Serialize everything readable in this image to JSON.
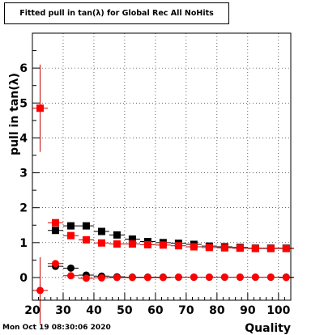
{
  "title": "Fitted pull in tan(λ) for Global Rec All NoHits",
  "timestamp": "Mon Oct 19 08:30:06 2020",
  "chart_data": {
    "type": "scatter",
    "title": "Fitted pull in tan(λ) for Global Rec All NoHits",
    "xlabel": "Quality",
    "ylabel": "pull in tan(λ)",
    "xlim": [
      20,
      104
    ],
    "ylim": [
      -0.65,
      7.0
    ],
    "x_ticks": [
      20,
      30,
      40,
      50,
      60,
      70,
      80,
      90,
      100
    ],
    "y_ticks": [
      0,
      1,
      2,
      3,
      4,
      5,
      6
    ],
    "grid": true,
    "colors": {
      "black": "#000000",
      "red": "#ff0000",
      "red_error": "#cc0000"
    },
    "series": [
      {
        "marker": "square",
        "color": "#000000",
        "points": [
          {
            "x": 27.5,
            "y": 1.35
          },
          {
            "x": 32.5,
            "y": 1.48
          },
          {
            "x": 37.5,
            "y": 1.48
          },
          {
            "x": 42.5,
            "y": 1.32
          },
          {
            "x": 47.5,
            "y": 1.22
          },
          {
            "x": 52.5,
            "y": 1.1
          },
          {
            "x": 57.5,
            "y": 1.03
          },
          {
            "x": 62.5,
            "y": 1.0
          },
          {
            "x": 67.5,
            "y": 0.98
          },
          {
            "x": 72.5,
            "y": 0.95
          },
          {
            "x": 77.5,
            "y": 0.9
          },
          {
            "x": 82.5,
            "y": 0.88
          },
          {
            "x": 87.5,
            "y": 0.86
          },
          {
            "x": 92.5,
            "y": 0.84
          },
          {
            "x": 97.5,
            "y": 0.84
          },
          {
            "x": 102.5,
            "y": 0.84
          }
        ]
      },
      {
        "marker": "square",
        "color": "#ff0000",
        "points": [
          {
            "x": 22.5,
            "y": 4.85,
            "err": 1.25
          },
          {
            "x": 27.5,
            "y": 1.57
          },
          {
            "x": 32.5,
            "y": 1.2
          },
          {
            "x": 37.5,
            "y": 1.08
          },
          {
            "x": 42.5,
            "y": 0.99
          },
          {
            "x": 47.5,
            "y": 0.96
          },
          {
            "x": 52.5,
            "y": 0.96
          },
          {
            "x": 57.5,
            "y": 0.94
          },
          {
            "x": 62.5,
            "y": 0.93
          },
          {
            "x": 67.5,
            "y": 0.91
          },
          {
            "x": 72.5,
            "y": 0.88
          },
          {
            "x": 77.5,
            "y": 0.86
          },
          {
            "x": 82.5,
            "y": 0.85
          },
          {
            "x": 87.5,
            "y": 0.84
          },
          {
            "x": 92.5,
            "y": 0.83
          },
          {
            "x": 97.5,
            "y": 0.83
          },
          {
            "x": 102.5,
            "y": 0.83
          }
        ]
      },
      {
        "marker": "circle",
        "color": "#000000",
        "points": [
          {
            "x": 27.5,
            "y": 0.32
          },
          {
            "x": 32.5,
            "y": 0.27
          },
          {
            "x": 37.5,
            "y": 0.07
          },
          {
            "x": 42.5,
            "y": 0.04
          },
          {
            "x": 47.5,
            "y": 0.02
          },
          {
            "x": 52.5,
            "y": 0.01
          },
          {
            "x": 57.5,
            "y": 0.01
          },
          {
            "x": 62.5,
            "y": 0.01
          },
          {
            "x": 67.5,
            "y": 0.01
          },
          {
            "x": 72.5,
            "y": 0.01
          },
          {
            "x": 77.5,
            "y": 0.01
          },
          {
            "x": 82.5,
            "y": 0.01
          },
          {
            "x": 87.5,
            "y": 0.01
          },
          {
            "x": 92.5,
            "y": 0.01
          },
          {
            "x": 97.5,
            "y": 0.01
          },
          {
            "x": 102.5,
            "y": 0.01
          }
        ]
      },
      {
        "marker": "circle",
        "color": "#ff0000",
        "points": [
          {
            "x": 22.5,
            "y": -0.37,
            "err": 0.95
          },
          {
            "x": 27.5,
            "y": 0.4
          },
          {
            "x": 32.5,
            "y": 0.05
          },
          {
            "x": 37.5,
            "y": -0.02
          },
          {
            "x": 42.5,
            "y": -0.01
          },
          {
            "x": 47.5,
            "y": 0.0
          },
          {
            "x": 52.5,
            "y": 0.0
          },
          {
            "x": 57.5,
            "y": 0.0
          },
          {
            "x": 62.5,
            "y": 0.0
          },
          {
            "x": 67.5,
            "y": 0.01
          },
          {
            "x": 72.5,
            "y": 0.01
          },
          {
            "x": 77.5,
            "y": 0.01
          },
          {
            "x": 82.5,
            "y": 0.01
          },
          {
            "x": 87.5,
            "y": 0.01
          },
          {
            "x": 92.5,
            "y": 0.01
          },
          {
            "x": 97.5,
            "y": 0.01
          },
          {
            "x": 102.5,
            "y": 0.0
          }
        ]
      }
    ]
  }
}
